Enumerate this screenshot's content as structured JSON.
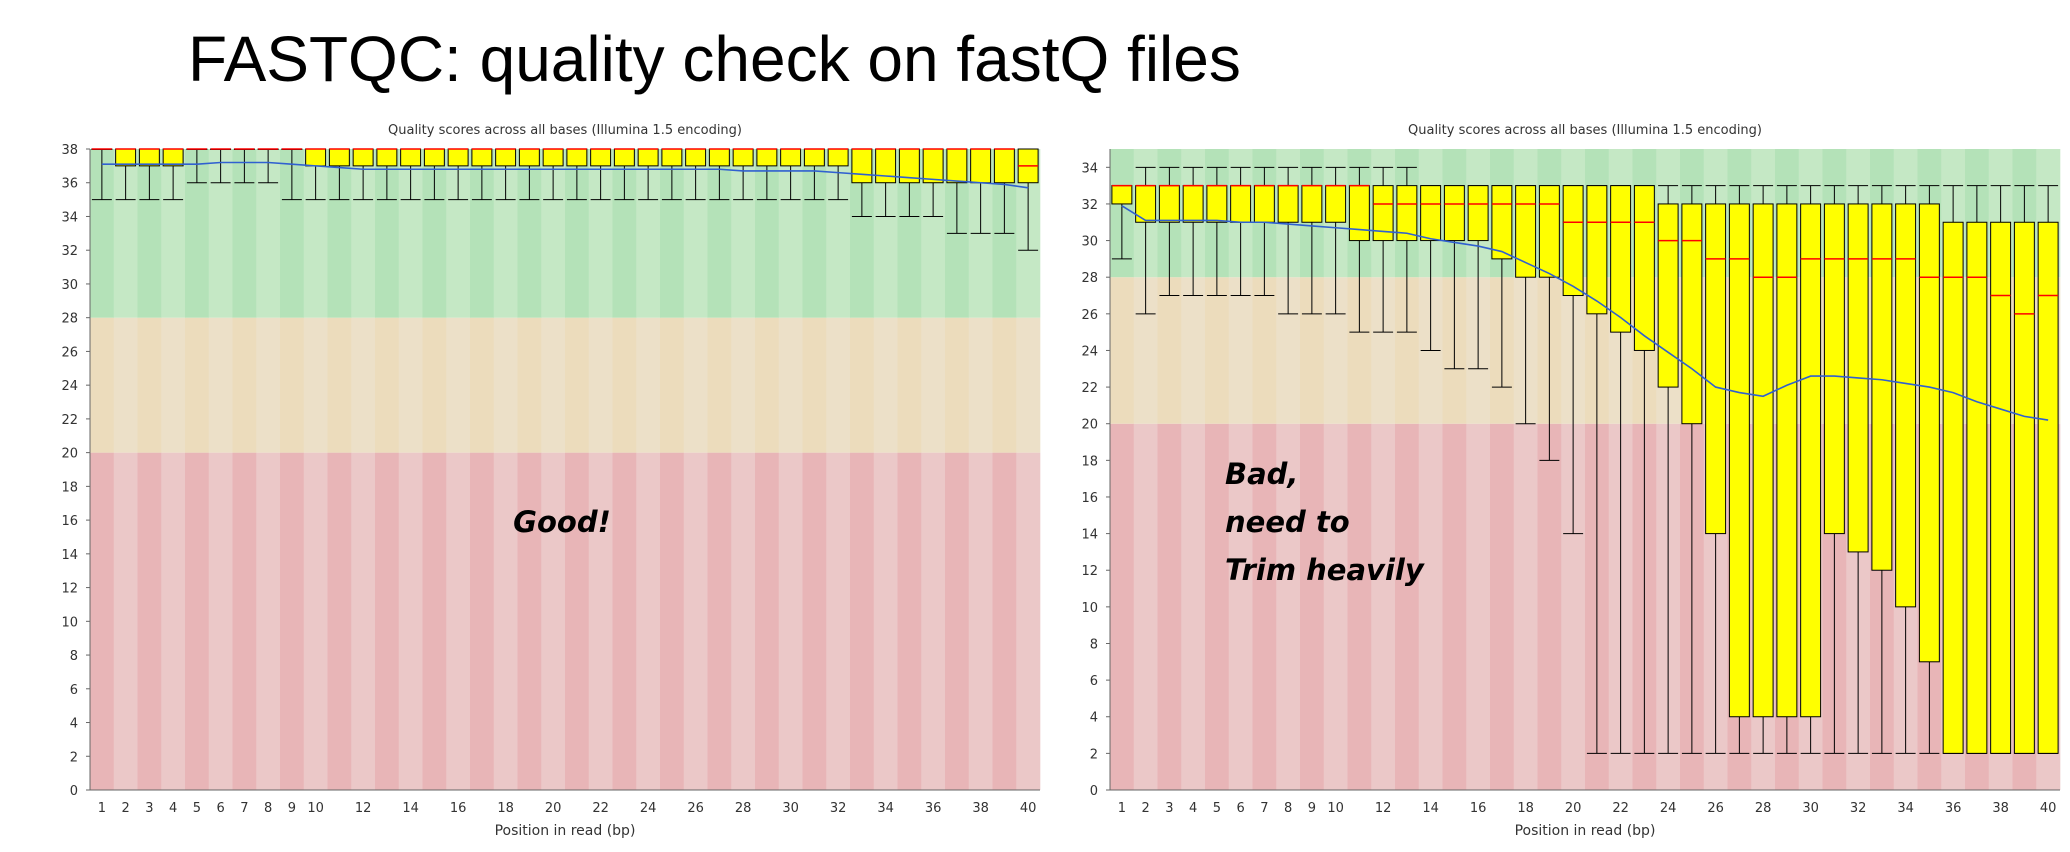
{
  "slide": {
    "title": "FASTQC: quality check on fastQ files"
  },
  "colors": {
    "zone_good": "#c5e8c5",
    "zone_good_alt": "#b4e2b8",
    "zone_ok": "#ece0c8",
    "zone_ok_alt": "#ecdcbc",
    "zone_bad": "#ebc8c8",
    "zone_bad_alt": "#e8b5b7",
    "box_fill": "#ffff00",
    "median_line": "#ff0000",
    "mean_line": "#3060d0",
    "whisker": "#000000"
  },
  "chart_data": [
    {
      "type": "box",
      "title": "Quality scores across all bases (Illumina 1.5 encoding)",
      "xlabel": "Position in read (bp)",
      "ylabel": "",
      "ylim": [
        0,
        38
      ],
      "yticks": [
        0,
        2,
        4,
        6,
        8,
        10,
        12,
        14,
        16,
        18,
        20,
        22,
        24,
        26,
        28,
        30,
        32,
        34,
        36,
        38
      ],
      "positions": [
        1,
        2,
        3,
        4,
        5,
        6,
        7,
        8,
        9,
        10,
        11,
        12,
        13,
        14,
        15,
        16,
        17,
        18,
        19,
        20,
        21,
        22,
        23,
        24,
        25,
        26,
        27,
        28,
        29,
        30,
        31,
        32,
        33,
        34,
        35,
        36,
        37,
        38,
        39,
        40
      ],
      "xtick_labels": [
        1,
        2,
        3,
        4,
        5,
        6,
        7,
        8,
        9,
        10,
        12,
        14,
        16,
        18,
        20,
        22,
        24,
        26,
        28,
        30,
        32,
        34,
        36,
        38,
        40
      ],
      "zones": [
        {
          "from": 0,
          "to": 20,
          "level": "bad"
        },
        {
          "from": 20,
          "to": 28,
          "level": "ok"
        },
        {
          "from": 28,
          "to": 38,
          "level": "good"
        }
      ],
      "annotation": "Good!",
      "boxes": [
        {
          "low": 35,
          "q1": 38,
          "median": 38,
          "q3": 38,
          "high": 38
        },
        {
          "low": 35,
          "q1": 37,
          "median": 38,
          "q3": 38,
          "high": 38
        },
        {
          "low": 35,
          "q1": 37,
          "median": 38,
          "q3": 38,
          "high": 38
        },
        {
          "low": 35,
          "q1": 37,
          "median": 38,
          "q3": 38,
          "high": 38
        },
        {
          "low": 36,
          "q1": 38,
          "median": 38,
          "q3": 38,
          "high": 38
        },
        {
          "low": 36,
          "q1": 38,
          "median": 38,
          "q3": 38,
          "high": 38
        },
        {
          "low": 36,
          "q1": 38,
          "median": 38,
          "q3": 38,
          "high": 38
        },
        {
          "low": 36,
          "q1": 38,
          "median": 38,
          "q3": 38,
          "high": 38
        },
        {
          "low": 35,
          "q1": 38,
          "median": 38,
          "q3": 38,
          "high": 38
        },
        {
          "low": 35,
          "q1": 37,
          "median": 38,
          "q3": 38,
          "high": 38
        },
        {
          "low": 35,
          "q1": 37,
          "median": 38,
          "q3": 38,
          "high": 38
        },
        {
          "low": 35,
          "q1": 37,
          "median": 38,
          "q3": 38,
          "high": 38
        },
        {
          "low": 35,
          "q1": 37,
          "median": 38,
          "q3": 38,
          "high": 38
        },
        {
          "low": 35,
          "q1": 37,
          "median": 38,
          "q3": 38,
          "high": 38
        },
        {
          "low": 35,
          "q1": 37,
          "median": 38,
          "q3": 38,
          "high": 38
        },
        {
          "low": 35,
          "q1": 37,
          "median": 38,
          "q3": 38,
          "high": 38
        },
        {
          "low": 35,
          "q1": 37,
          "median": 38,
          "q3": 38,
          "high": 38
        },
        {
          "low": 35,
          "q1": 37,
          "median": 38,
          "q3": 38,
          "high": 38
        },
        {
          "low": 35,
          "q1": 37,
          "median": 38,
          "q3": 38,
          "high": 38
        },
        {
          "low": 35,
          "q1": 37,
          "median": 38,
          "q3": 38,
          "high": 38
        },
        {
          "low": 35,
          "q1": 37,
          "median": 38,
          "q3": 38,
          "high": 38
        },
        {
          "low": 35,
          "q1": 37,
          "median": 38,
          "q3": 38,
          "high": 38
        },
        {
          "low": 35,
          "q1": 37,
          "median": 38,
          "q3": 38,
          "high": 38
        },
        {
          "low": 35,
          "q1": 37,
          "median": 38,
          "q3": 38,
          "high": 38
        },
        {
          "low": 35,
          "q1": 37,
          "median": 38,
          "q3": 38,
          "high": 38
        },
        {
          "low": 35,
          "q1": 37,
          "median": 38,
          "q3": 38,
          "high": 38
        },
        {
          "low": 35,
          "q1": 37,
          "median": 38,
          "q3": 38,
          "high": 38
        },
        {
          "low": 35,
          "q1": 37,
          "median": 38,
          "q3": 38,
          "high": 38
        },
        {
          "low": 35,
          "q1": 37,
          "median": 38,
          "q3": 38,
          "high": 38
        },
        {
          "low": 35,
          "q1": 37,
          "median": 38,
          "q3": 38,
          "high": 38
        },
        {
          "low": 35,
          "q1": 37,
          "median": 38,
          "q3": 38,
          "high": 38
        },
        {
          "low": 35,
          "q1": 37,
          "median": 38,
          "q3": 38,
          "high": 38
        },
        {
          "low": 34,
          "q1": 36,
          "median": 38,
          "q3": 38,
          "high": 38
        },
        {
          "low": 34,
          "q1": 36,
          "median": 38,
          "q3": 38,
          "high": 38
        },
        {
          "low": 34,
          "q1": 36,
          "median": 38,
          "q3": 38,
          "high": 38
        },
        {
          "low": 34,
          "q1": 36,
          "median": 38,
          "q3": 38,
          "high": 38
        },
        {
          "low": 33,
          "q1": 36,
          "median": 38,
          "q3": 38,
          "high": 38
        },
        {
          "low": 33,
          "q1": 36,
          "median": 38,
          "q3": 38,
          "high": 38
        },
        {
          "low": 33,
          "q1": 36,
          "median": 38,
          "q3": 38,
          "high": 38
        },
        {
          "low": 32,
          "q1": 36,
          "median": 37,
          "q3": 38,
          "high": 38
        }
      ],
      "mean": [
        37.1,
        37.1,
        37.1,
        37.1,
        37.1,
        37.2,
        37.2,
        37.2,
        37.1,
        37.0,
        36.9,
        36.8,
        36.8,
        36.8,
        36.8,
        36.8,
        36.8,
        36.8,
        36.8,
        36.8,
        36.8,
        36.8,
        36.8,
        36.8,
        36.8,
        36.8,
        36.8,
        36.7,
        36.7,
        36.7,
        36.7,
        36.6,
        36.5,
        36.4,
        36.3,
        36.2,
        36.1,
        36.0,
        35.9,
        35.7
      ]
    },
    {
      "type": "box",
      "title": "Quality scores across all bases (Illumina 1.5 encoding)",
      "xlabel": "Position in read (bp)",
      "ylabel": "",
      "ylim": [
        0,
        35
      ],
      "yticks": [
        0,
        2,
        4,
        6,
        8,
        10,
        12,
        14,
        16,
        18,
        20,
        22,
        24,
        26,
        28,
        30,
        32,
        34
      ],
      "positions": [
        1,
        2,
        3,
        4,
        5,
        6,
        7,
        8,
        9,
        10,
        11,
        12,
        13,
        14,
        15,
        16,
        17,
        18,
        19,
        20,
        21,
        22,
        23,
        24,
        25,
        26,
        27,
        28,
        29,
        30,
        31,
        32,
        33,
        34,
        35,
        36,
        37,
        38,
        39,
        40
      ],
      "xtick_labels": [
        1,
        2,
        3,
        4,
        5,
        6,
        7,
        8,
        9,
        10,
        12,
        14,
        16,
        18,
        20,
        22,
        24,
        26,
        28,
        30,
        32,
        34,
        36,
        38,
        40
      ],
      "zones": [
        {
          "from": 0,
          "to": 20,
          "level": "bad"
        },
        {
          "from": 20,
          "to": 28,
          "level": "ok"
        },
        {
          "from": 28,
          "to": 35,
          "level": "good"
        }
      ],
      "annotation": [
        "Bad,",
        "need to",
        "Trim heavily"
      ],
      "boxes": [
        {
          "low": 29,
          "q1": 32,
          "median": 33,
          "q3": 33,
          "high": 33
        },
        {
          "low": 26,
          "q1": 31,
          "median": 33,
          "q3": 33,
          "high": 34
        },
        {
          "low": 27,
          "q1": 31,
          "median": 33,
          "q3": 33,
          "high": 34
        },
        {
          "low": 27,
          "q1": 31,
          "median": 33,
          "q3": 33,
          "high": 34
        },
        {
          "low": 27,
          "q1": 31,
          "median": 33,
          "q3": 33,
          "high": 34
        },
        {
          "low": 27,
          "q1": 31,
          "median": 33,
          "q3": 33,
          "high": 34
        },
        {
          "low": 27,
          "q1": 31,
          "median": 33,
          "q3": 33,
          "high": 34
        },
        {
          "low": 26,
          "q1": 31,
          "median": 33,
          "q3": 33,
          "high": 34
        },
        {
          "low": 26,
          "q1": 31,
          "median": 33,
          "q3": 33,
          "high": 34
        },
        {
          "low": 26,
          "q1": 31,
          "median": 33,
          "q3": 33,
          "high": 34
        },
        {
          "low": 25,
          "q1": 30,
          "median": 33,
          "q3": 33,
          "high": 34
        },
        {
          "low": 25,
          "q1": 30,
          "median": 32,
          "q3": 33,
          "high": 34
        },
        {
          "low": 25,
          "q1": 30,
          "median": 32,
          "q3": 33,
          "high": 34
        },
        {
          "low": 24,
          "q1": 30,
          "median": 32,
          "q3": 33,
          "high": 33
        },
        {
          "low": 23,
          "q1": 30,
          "median": 32,
          "q3": 33,
          "high": 33
        },
        {
          "low": 23,
          "q1": 30,
          "median": 32,
          "q3": 33,
          "high": 33
        },
        {
          "low": 22,
          "q1": 29,
          "median": 32,
          "q3": 33,
          "high": 33
        },
        {
          "low": 20,
          "q1": 28,
          "median": 32,
          "q3": 33,
          "high": 33
        },
        {
          "low": 18,
          "q1": 28,
          "median": 32,
          "q3": 33,
          "high": 33
        },
        {
          "low": 14,
          "q1": 27,
          "median": 31,
          "q3": 33,
          "high": 33
        },
        {
          "low": 2,
          "q1": 26,
          "median": 31,
          "q3": 33,
          "high": 33
        },
        {
          "low": 2,
          "q1": 25,
          "median": 31,
          "q3": 33,
          "high": 33
        },
        {
          "low": 2,
          "q1": 24,
          "median": 31,
          "q3": 33,
          "high": 33
        },
        {
          "low": 2,
          "q1": 22,
          "median": 30,
          "q3": 32,
          "high": 33
        },
        {
          "low": 2,
          "q1": 20,
          "median": 30,
          "q3": 32,
          "high": 33
        },
        {
          "low": 2,
          "q1": 14,
          "median": 29,
          "q3": 32,
          "high": 33
        },
        {
          "low": 2,
          "q1": 4,
          "median": 29,
          "q3": 32,
          "high": 33
        },
        {
          "low": 2,
          "q1": 4,
          "median": 28,
          "q3": 32,
          "high": 33
        },
        {
          "low": 2,
          "q1": 4,
          "median": 28,
          "q3": 32,
          "high": 33
        },
        {
          "low": 2,
          "q1": 4,
          "median": 29,
          "q3": 32,
          "high": 33
        },
        {
          "low": 2,
          "q1": 14,
          "median": 29,
          "q3": 32,
          "high": 33
        },
        {
          "low": 2,
          "q1": 13,
          "median": 29,
          "q3": 32,
          "high": 33
        },
        {
          "low": 2,
          "q1": 12,
          "median": 29,
          "q3": 32,
          "high": 33
        },
        {
          "low": 2,
          "q1": 10,
          "median": 29,
          "q3": 32,
          "high": 33
        },
        {
          "low": 2,
          "q1": 7,
          "median": 28,
          "q3": 32,
          "high": 33
        },
        {
          "low": 2,
          "q1": 2,
          "median": 28,
          "q3": 31,
          "high": 33
        },
        {
          "low": 2,
          "q1": 2,
          "median": 28,
          "q3": 31,
          "high": 33
        },
        {
          "low": 2,
          "q1": 2,
          "median": 27,
          "q3": 31,
          "high": 33
        },
        {
          "low": 2,
          "q1": 2,
          "median": 26,
          "q3": 31,
          "high": 33
        },
        {
          "low": 2,
          "q1": 2,
          "median": 27,
          "q3": 31,
          "high": 33
        }
      ],
      "mean": [
        31.9,
        31.1,
        31.1,
        31.1,
        31.1,
        31.0,
        31.0,
        30.9,
        30.8,
        30.7,
        30.6,
        30.5,
        30.4,
        30.1,
        29.9,
        29.7,
        29.4,
        28.8,
        28.2,
        27.5,
        26.7,
        25.8,
        24.8,
        23.9,
        23.0,
        22.0,
        21.7,
        21.5,
        22.1,
        22.6,
        22.6,
        22.5,
        22.4,
        22.2,
        22.0,
        21.7,
        21.2,
        20.8,
        20.4,
        20.2
      ]
    }
  ]
}
